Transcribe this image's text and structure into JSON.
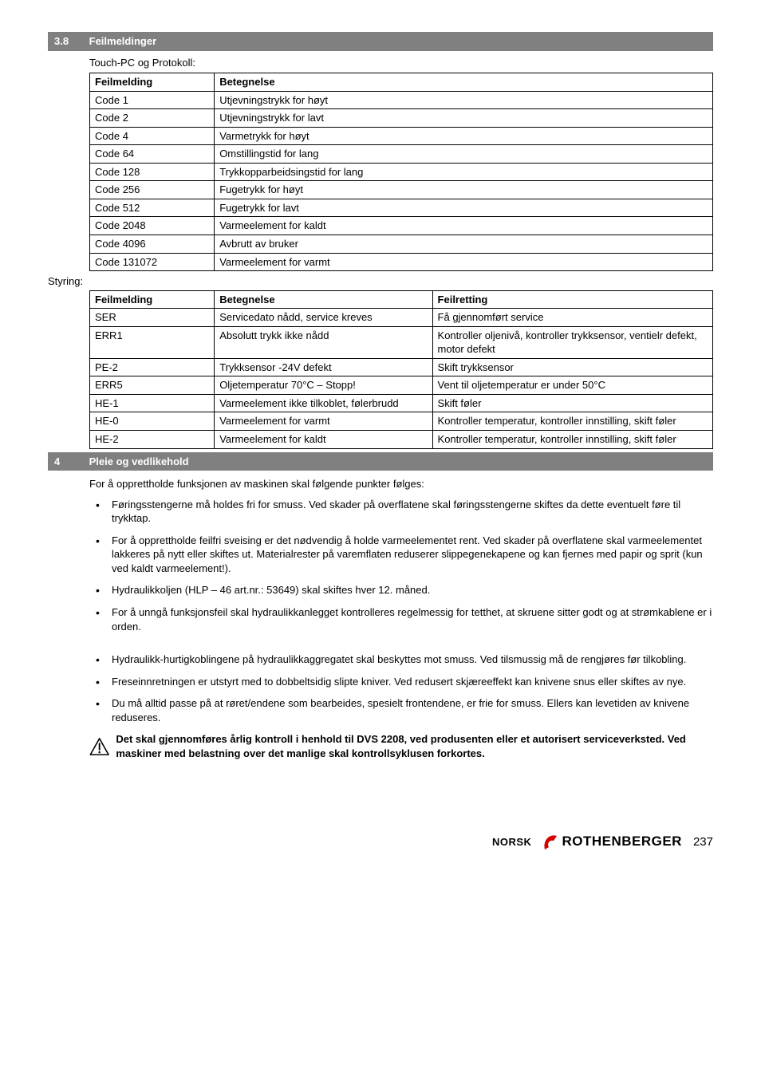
{
  "section1": {
    "num": "3.8",
    "title": "Feilmeldinger"
  },
  "touchpc_label": "Touch-PC og Protokoll:",
  "table1": {
    "headers": [
      "Feilmelding",
      "Betegnelse"
    ],
    "rows": [
      [
        "Code 1",
        "Utjevningstrykk for høyt"
      ],
      [
        "Code 2",
        "Utjevningstrykk for lavt"
      ],
      [
        "Code 4",
        "Varmetrykk for høyt"
      ],
      [
        "Code 64",
        "Omstillingstid for lang"
      ],
      [
        "Code 128",
        "Trykkopparbeidsingstid for lang"
      ],
      [
        "Code 256",
        "Fugetrykk for høyt"
      ],
      [
        "Code 512",
        "Fugetrykk for lavt"
      ],
      [
        "Code 2048",
        "Varmeelement for kaldt"
      ],
      [
        "Code 4096",
        "Avbrutt av bruker"
      ],
      [
        "Code 131072",
        "Varmeelement for varmt"
      ]
    ]
  },
  "styring_label": "Styring:",
  "table2": {
    "headers": [
      "Feilmelding",
      "Betegnelse",
      "Feilretting"
    ],
    "rows": [
      [
        "SER",
        "Servicedato nådd, service kreves",
        "Få gjennomført service"
      ],
      [
        "ERR1",
        "Absolutt trykk ikke nådd",
        "Kontroller oljenivå, kontroller trykksensor, ventielr defekt, motor defekt"
      ],
      [
        "PE-2",
        "Trykksensor -24V defekt",
        "Skift trykksensor"
      ],
      [
        "ERR5",
        "Oljetemperatur 70°C – Stopp!",
        "Vent til oljetemperatur er under 50°C"
      ],
      [
        "HE-1",
        "Varmeelement ikke tilkoblet, følerbrudd",
        "Skift føler"
      ],
      [
        "HE-0",
        "Varmeelement for varmt",
        "Kontroller temperatur, kontroller innstilling, skift føler"
      ],
      [
        "HE-2",
        "Varmeelement for kaldt",
        "Kontroller temperatur, kontroller innstilling, skift føler"
      ]
    ]
  },
  "section2": {
    "num": "4",
    "title": "Pleie og vedlikehold"
  },
  "intro": "For å opprettholde funksjonen av maskinen skal følgende punkter følges:",
  "bullets": [
    "Føringsstengerne må holdes fri for smuss. Ved skader på overflatene skal føringsstengerne skiftes da dette eventuelt føre til trykktap.",
    "For å opprettholde feilfri sveising er det nødvendig å holde varmeelementet rent. Ved skader på overflatene skal varmeelementet lakkeres på nytt eller skiftes ut. Materialrester på varemflaten reduserer slippegenekapene og kan fjernes med papir og sprit (kun ved kaldt varmeelement!).",
    "Hydraulikkoljen (HLP – 46 art.nr.: 53649) skal skiftes hver 12. måned.",
    "For å unngå funksjonsfeil skal hydraulikkanlegget kontrolleres regelmessig for tetthet, at skruene sitter godt og at strømkablene er i orden.",
    "Hydraulikk-hurtigkoblingene på hydraulikkaggregatet skal beskyttes mot smuss. Ved tilsmussig må de rengjøres før tilkobling.",
    "Freseinnretningen er utstyrt med to dobbeltsidig slipte kniver. Ved redusert skjæreeffekt kan knivene snus eller skiftes av nye.",
    "Du må alltid passe på at røret/endene som bearbeides, spesielt frontendene, er frie for smuss. Ellers kan levetiden av knivene reduseres."
  ],
  "warning": "Det skal gjennomføres årlig kontroll i henhold til DVS 2208, ved produsenten eller et autorisert serviceverksted. Ved maskiner med belastning over det manlige skal kontrollsyklusen forkortes.",
  "footer": {
    "lang": "NORSK",
    "logo": "ROTHENBERGER",
    "page": "237"
  },
  "colors": {
    "header_bg": "#808080",
    "header_fg": "#ffffff",
    "logo_red": "#d40000"
  }
}
